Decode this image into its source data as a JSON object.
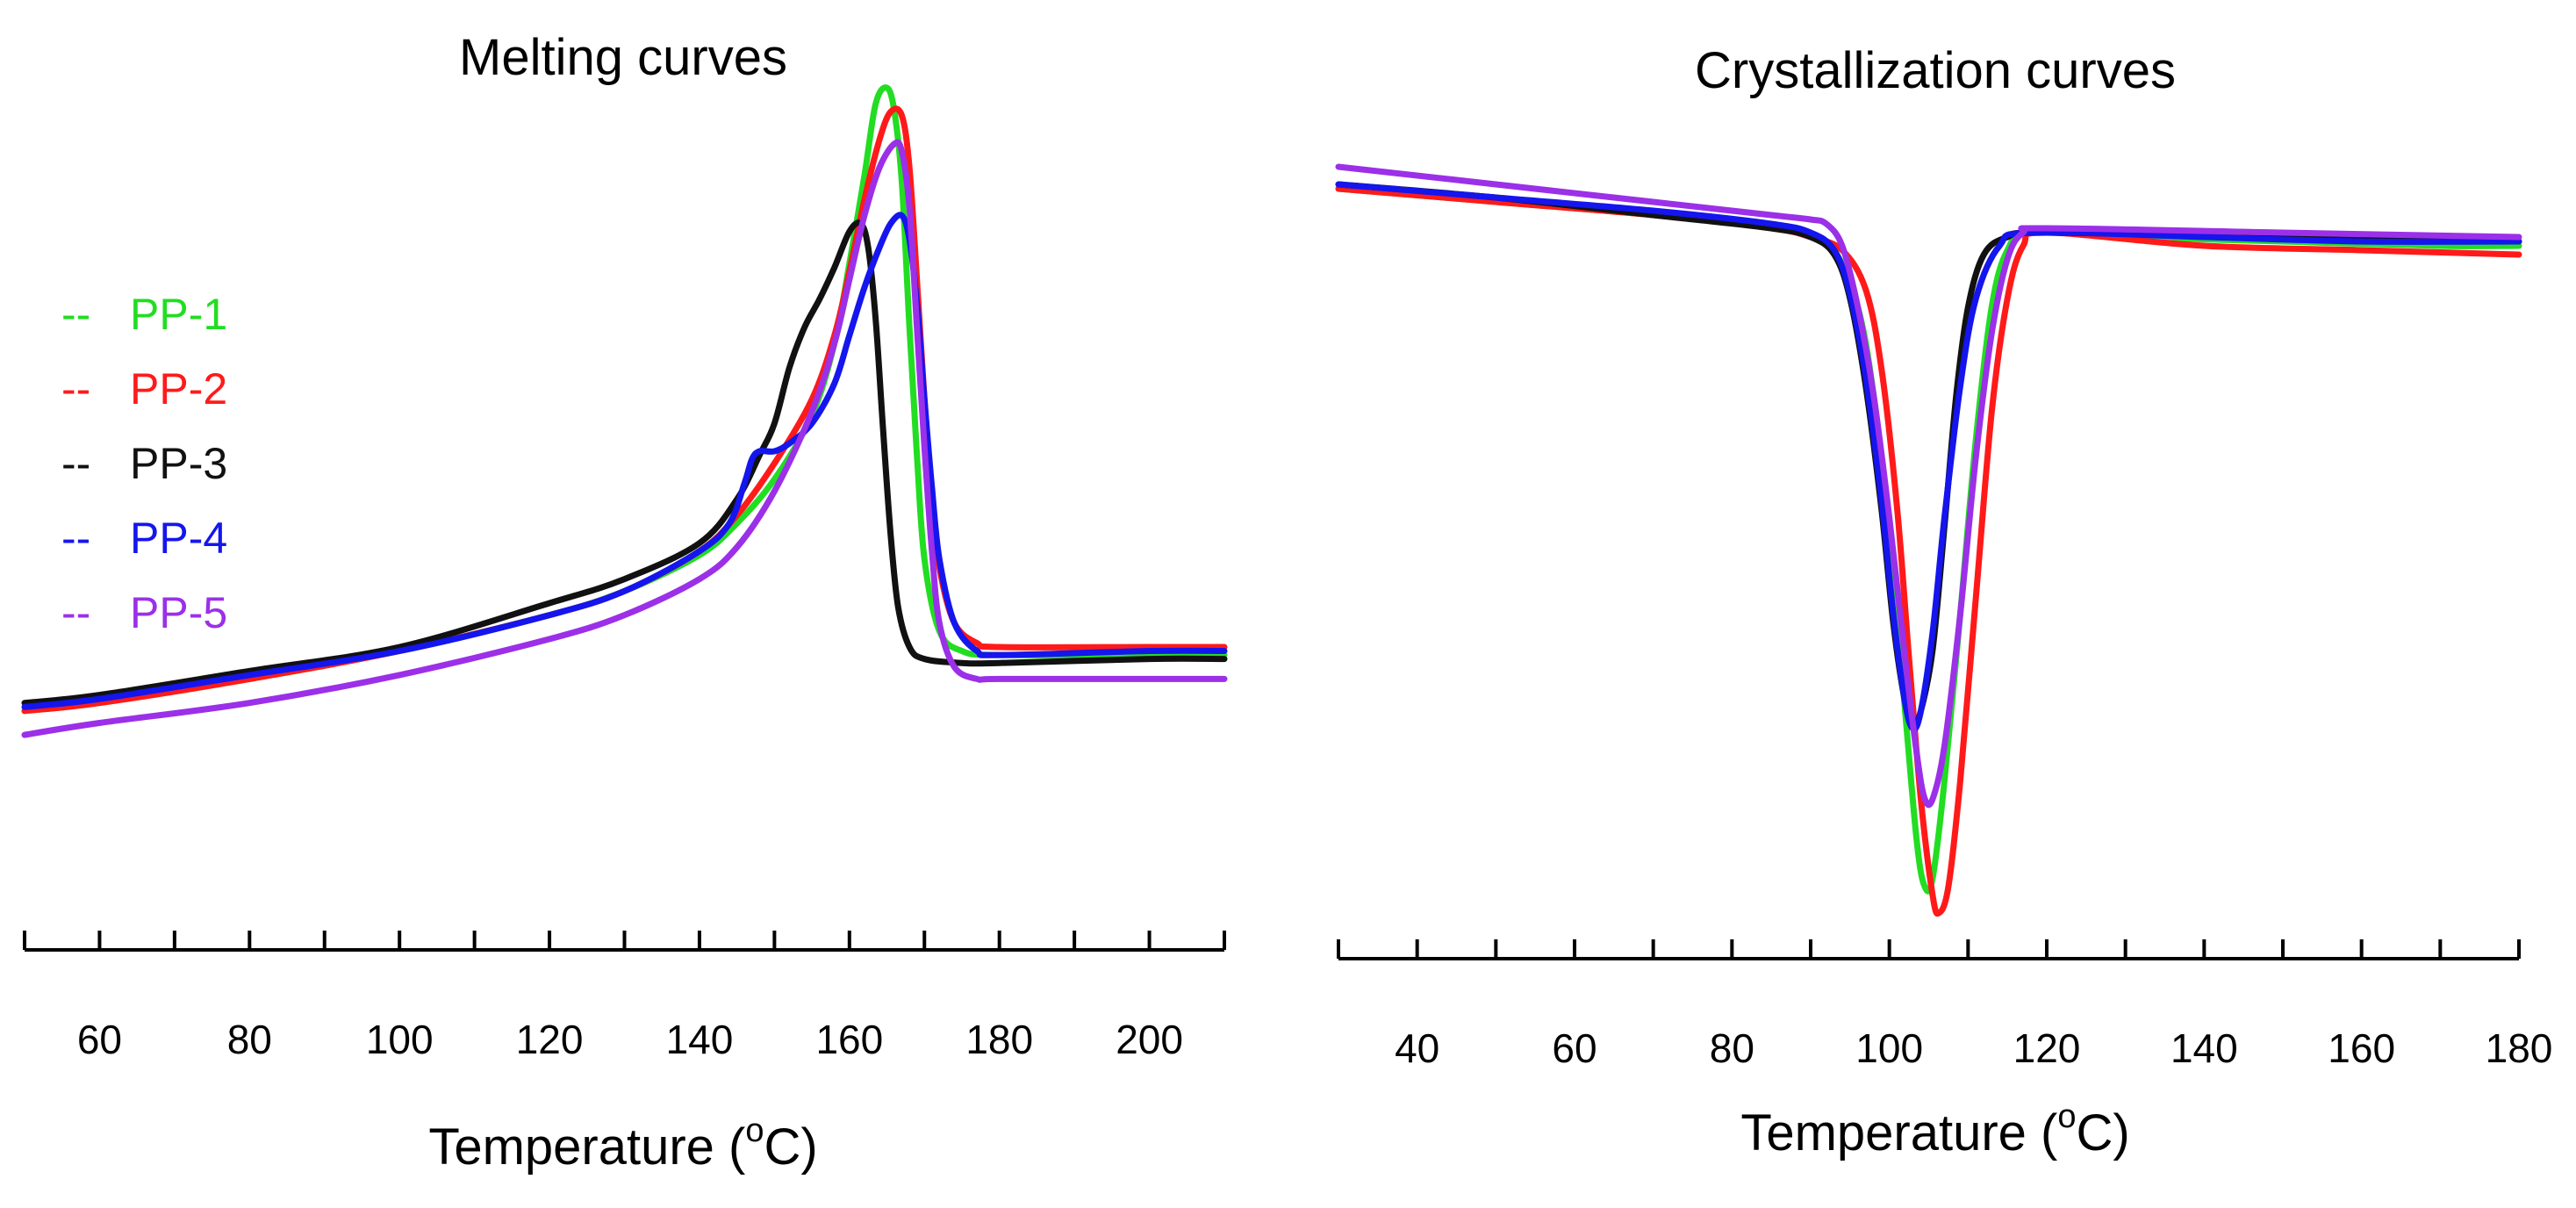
{
  "chart_data": [
    {
      "type": "line",
      "title": "Melting curves",
      "xlabel_main": "Temperature (",
      "xlabel_sup": "o",
      "xlabel_unit": "C)",
      "ylabel": "",
      "xlim": [
        50,
        210
      ],
      "ylim": [
        0,
        10
      ],
      "x_ticks": [
        60,
        80,
        100,
        120,
        140,
        160,
        180,
        200
      ],
      "x_tick_labels": [
        "60",
        "80",
        "100",
        "120",
        "140",
        "160",
        "180",
        "200"
      ],
      "legend_position": "top-left",
      "series": [
        {
          "name": "PP-1",
          "color": "#22dd22",
          "points": [
            [
              50,
              2.2
            ],
            [
              60,
              2.3
            ],
            [
              80,
              2.6
            ],
            [
              100,
              2.95
            ],
            [
              120,
              3.4
            ],
            [
              130,
              3.7
            ],
            [
              140,
              4.15
            ],
            [
              145,
              4.55
            ],
            [
              150,
              5.1
            ],
            [
              155,
              5.9
            ],
            [
              158,
              6.8
            ],
            [
              160,
              7.8
            ],
            [
              162,
              8.9
            ],
            [
              163.5,
              9.8
            ],
            [
              165,
              10.0
            ],
            [
              166,
              9.7
            ],
            [
              167,
              8.8
            ],
            [
              168,
              7.0
            ],
            [
              169,
              5.4
            ],
            [
              170,
              4.1
            ],
            [
              172,
              3.2
            ],
            [
              175,
              2.95
            ],
            [
              180,
              2.9
            ],
            [
              200,
              2.9
            ],
            [
              210,
              2.9
            ]
          ]
        },
        {
          "name": "PP-2",
          "color": "#ff1a1a",
          "points": [
            [
              50,
              2.2
            ],
            [
              60,
              2.3
            ],
            [
              80,
              2.6
            ],
            [
              100,
              2.95
            ],
            [
              120,
              3.4
            ],
            [
              130,
              3.7
            ],
            [
              140,
              4.2
            ],
            [
              145,
              4.65
            ],
            [
              150,
              5.3
            ],
            [
              155,
              6.1
            ],
            [
              158,
              6.9
            ],
            [
              160,
              7.7
            ],
            [
              162,
              8.6
            ],
            [
              164,
              9.35
            ],
            [
              165.5,
              9.7
            ],
            [
              167,
              9.65
            ],
            [
              168,
              9.0
            ],
            [
              169,
              7.6
            ],
            [
              170,
              6.1
            ],
            [
              171,
              4.9
            ],
            [
              172,
              4.0
            ],
            [
              174,
              3.3
            ],
            [
              177,
              3.05
            ],
            [
              180,
              3.0
            ],
            [
              200,
              3.0
            ],
            [
              210,
              3.0
            ]
          ]
        },
        {
          "name": "PP-3",
          "color": "#111111",
          "points": [
            [
              50,
              2.3
            ],
            [
              60,
              2.4
            ],
            [
              80,
              2.7
            ],
            [
              100,
              3.0
            ],
            [
              120,
              3.55
            ],
            [
              130,
              3.85
            ],
            [
              140,
              4.3
            ],
            [
              145,
              4.85
            ],
            [
              148,
              5.4
            ],
            [
              150,
              5.8
            ],
            [
              152,
              6.5
            ],
            [
              154,
              7.0
            ],
            [
              156,
              7.35
            ],
            [
              158,
              7.75
            ],
            [
              160,
              8.2
            ],
            [
              161.5,
              8.3
            ],
            [
              162.5,
              8.0
            ],
            [
              163.5,
              7.1
            ],
            [
              164.5,
              5.7
            ],
            [
              165.5,
              4.4
            ],
            [
              166.5,
              3.5
            ],
            [
              168,
              3.0
            ],
            [
              170,
              2.85
            ],
            [
              175,
              2.8
            ],
            [
              180,
              2.8
            ],
            [
              200,
              2.85
            ],
            [
              210,
              2.85
            ]
          ]
        },
        {
          "name": "PP-4",
          "color": "#1515ee",
          "points": [
            [
              50,
              2.25
            ],
            [
              60,
              2.35
            ],
            [
              80,
              2.65
            ],
            [
              100,
              2.95
            ],
            [
              120,
              3.4
            ],
            [
              130,
              3.7
            ],
            [
              140,
              4.2
            ],
            [
              144,
              4.55
            ],
            [
              146,
              5.05
            ],
            [
              147,
              5.35
            ],
            [
              148,
              5.45
            ],
            [
              150,
              5.45
            ],
            [
              152,
              5.55
            ],
            [
              155,
              5.8
            ],
            [
              158,
              6.3
            ],
            [
              160,
              6.9
            ],
            [
              162,
              7.5
            ],
            [
              164,
              8.0
            ],
            [
              165.5,
              8.3
            ],
            [
              167,
              8.4
            ],
            [
              168,
              8.1
            ],
            [
              169,
              7.3
            ],
            [
              170,
              6.1
            ],
            [
              171,
              5.0
            ],
            [
              172,
              4.1
            ],
            [
              174,
              3.3
            ],
            [
              177,
              2.95
            ],
            [
              180,
              2.9
            ],
            [
              200,
              2.95
            ],
            [
              210,
              2.95
            ]
          ]
        },
        {
          "name": "PP-5",
          "color": "#9b30e8",
          "points": [
            [
              50,
              1.9
            ],
            [
              60,
              2.05
            ],
            [
              80,
              2.3
            ],
            [
              100,
              2.65
            ],
            [
              120,
              3.1
            ],
            [
              130,
              3.4
            ],
            [
              140,
              3.85
            ],
            [
              145,
              4.25
            ],
            [
              150,
              4.95
            ],
            [
              155,
              5.95
            ],
            [
              158,
              6.8
            ],
            [
              160,
              7.6
            ],
            [
              162,
              8.4
            ],
            [
              164,
              9.0
            ],
            [
              166,
              9.3
            ],
            [
              167,
              9.2
            ],
            [
              168,
              8.5
            ],
            [
              169,
              7.0
            ],
            [
              170,
              5.5
            ],
            [
              171,
              4.2
            ],
            [
              172,
              3.3
            ],
            [
              174,
              2.75
            ],
            [
              177,
              2.6
            ],
            [
              180,
              2.6
            ],
            [
              200,
              2.6
            ],
            [
              210,
              2.6
            ]
          ]
        }
      ]
    },
    {
      "type": "line",
      "title": "Crystallization curves",
      "xlabel_main": "Temperature (",
      "xlabel_sup": "o",
      "xlabel_unit": "C)",
      "ylabel": "",
      "xlim": [
        30,
        180
      ],
      "ylim": [
        0,
        10
      ],
      "x_ticks": [
        40,
        60,
        80,
        100,
        120,
        140,
        160,
        180
      ],
      "x_tick_labels": [
        "40",
        "60",
        "80",
        "100",
        "120",
        "140",
        "160",
        "180"
      ],
      "series": [
        {
          "name": "PP-1",
          "color": "#22dd22",
          "points": [
            [
              30,
              9.25
            ],
            [
              50,
              9.1
            ],
            [
              70,
              8.95
            ],
            [
              85,
              8.8
            ],
            [
              90,
              8.7
            ],
            [
              93,
              8.55
            ],
            [
              96,
              7.9
            ],
            [
              98,
              6.9
            ],
            [
              100,
              5.3
            ],
            [
              102,
              3.3
            ],
            [
              103.5,
              1.8
            ],
            [
              104.5,
              1.3
            ],
            [
              105.5,
              1.4
            ],
            [
              107,
              2.5
            ],
            [
              109,
              4.4
            ],
            [
              111,
              6.4
            ],
            [
              113,
              7.9
            ],
            [
              115,
              8.55
            ],
            [
              118,
              8.75
            ],
            [
              130,
              8.7
            ],
            [
              150,
              8.65
            ],
            [
              170,
              8.6
            ],
            [
              180,
              8.6
            ]
          ]
        },
        {
          "name": "PP-2",
          "color": "#ff1a1a",
          "points": [
            [
              30,
              9.25
            ],
            [
              50,
              9.1
            ],
            [
              70,
              8.95
            ],
            [
              85,
              8.8
            ],
            [
              90,
              8.7
            ],
            [
              94,
              8.55
            ],
            [
              97,
              8.1
            ],
            [
              99,
              7.2
            ],
            [
              101,
              5.6
            ],
            [
              102.5,
              3.9
            ],
            [
              104,
              2.3
            ],
            [
              105.5,
              1.2
            ],
            [
              106.3,
              1.0
            ],
            [
              107.5,
              1.3
            ],
            [
              109,
              2.5
            ],
            [
              111,
              4.6
            ],
            [
              113,
              6.7
            ],
            [
              115,
              8.0
            ],
            [
              117,
              8.6
            ],
            [
              120,
              8.75
            ],
            [
              140,
              8.6
            ],
            [
              160,
              8.55
            ],
            [
              180,
              8.5
            ]
          ]
        },
        {
          "name": "PP-3",
          "color": "#111111",
          "points": [
            [
              30,
              9.3
            ],
            [
              50,
              9.15
            ],
            [
              70,
              8.95
            ],
            [
              85,
              8.8
            ],
            [
              90,
              8.7
            ],
            [
              93,
              8.5
            ],
            [
              95,
              8.0
            ],
            [
              97,
              7.0
            ],
            [
              99,
              5.6
            ],
            [
              100.5,
              4.3
            ],
            [
              102,
              3.4
            ],
            [
              103,
              3.15
            ],
            [
              104,
              3.3
            ],
            [
              105.5,
              4.0
            ],
            [
              107,
              5.4
            ],
            [
              108.5,
              6.9
            ],
            [
              110,
              7.9
            ],
            [
              112,
              8.5
            ],
            [
              115,
              8.7
            ],
            [
              120,
              8.75
            ],
            [
              150,
              8.7
            ],
            [
              180,
              8.65
            ]
          ]
        },
        {
          "name": "PP-4",
          "color": "#1515ee",
          "points": [
            [
              30,
              9.3
            ],
            [
              50,
              9.15
            ],
            [
              70,
              9.0
            ],
            [
              85,
              8.85
            ],
            [
              90,
              8.75
            ],
            [
              93,
              8.55
            ],
            [
              95,
              8.05
            ],
            [
              97,
              7.1
            ],
            [
              99,
              5.7
            ],
            [
              100.5,
              4.4
            ],
            [
              102,
              3.4
            ],
            [
              103,
              3.1
            ],
            [
              104,
              3.3
            ],
            [
              105.5,
              4.2
            ],
            [
              107,
              5.5
            ],
            [
              109,
              7.0
            ],
            [
              111,
              8.0
            ],
            [
              114,
              8.6
            ],
            [
              118,
              8.75
            ],
            [
              140,
              8.7
            ],
            [
              160,
              8.65
            ],
            [
              180,
              8.65
            ]
          ]
        },
        {
          "name": "PP-5",
          "color": "#9b30e8",
          "points": [
            [
              30,
              9.5
            ],
            [
              50,
              9.3
            ],
            [
              70,
              9.1
            ],
            [
              85,
              8.95
            ],
            [
              90,
              8.9
            ],
            [
              92,
              8.85
            ],
            [
              94,
              8.6
            ],
            [
              96,
              7.9
            ],
            [
              98,
              6.9
            ],
            [
              100,
              5.5
            ],
            [
              102,
              3.9
            ],
            [
              103.5,
              2.8
            ],
            [
              104.5,
              2.3
            ],
            [
              105.5,
              2.3
            ],
            [
              107,
              2.9
            ],
            [
              109,
              4.4
            ],
            [
              111,
              6.2
            ],
            [
              113,
              7.6
            ],
            [
              115,
              8.45
            ],
            [
              117,
              8.75
            ],
            [
              120,
              8.8
            ],
            [
              150,
              8.75
            ],
            [
              180,
              8.7
            ]
          ]
        }
      ]
    }
  ],
  "legend": [
    {
      "marker": "--",
      "label": "PP-1",
      "color": "#22dd22"
    },
    {
      "marker": "--",
      "label": "PP-2",
      "color": "#ff1a1a"
    },
    {
      "marker": "--",
      "label": "PP-3",
      "color": "#111111"
    },
    {
      "marker": "--",
      "label": "PP-4",
      "color": "#1515ee"
    },
    {
      "marker": "--",
      "label": "PP-5",
      "color": "#9b30e8"
    }
  ]
}
